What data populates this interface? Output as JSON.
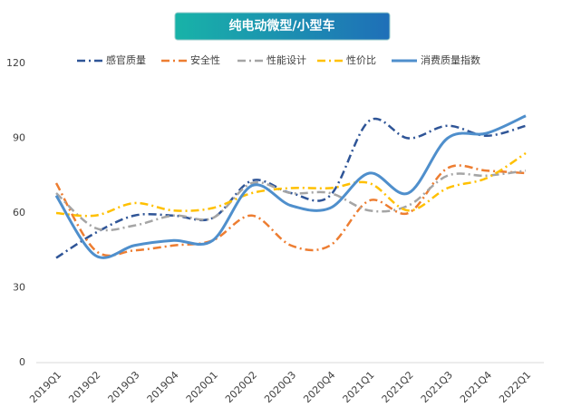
{
  "chart_data": {
    "type": "line",
    "title": "纯电动微型/小型车",
    "categories": [
      "2019Q1",
      "2019Q2",
      "2019Q3",
      "2019Q4",
      "2020Q1",
      "2020Q2",
      "2020Q3",
      "2020Q4",
      "2021Q1",
      "2021Q2",
      "2021Q3",
      "2021Q4",
      "2022Q1"
    ],
    "series": [
      {
        "name": "感官质量",
        "color": "#2f5597",
        "line_style": "dash-dot",
        "values": [
          42,
          52,
          59,
          59,
          58,
          73,
          68,
          67,
          97,
          90,
          95,
          91,
          95
        ]
      },
      {
        "name": "安全性",
        "color": "#ed7d31",
        "line_style": "dash-dot",
        "values": [
          72,
          45,
          45,
          47,
          49,
          59,
          47,
          47,
          65,
          60,
          78,
          77,
          76
        ]
      },
      {
        "name": "性能设计",
        "color": "#a5a5a5",
        "line_style": "dash-dot",
        "values": [
          68,
          54,
          55,
          59,
          58,
          72,
          68,
          68,
          61,
          63,
          75,
          75,
          77
        ]
      },
      {
        "name": "性价比",
        "color": "#ffc000",
        "line_style": "dash-dot",
        "values": [
          60,
          59,
          64,
          61,
          62,
          68,
          70,
          70,
          72,
          61,
          70,
          74,
          84
        ]
      },
      {
        "name": "消费质量指数",
        "color": "#4f8fcc",
        "line_style": "solid",
        "values": [
          67,
          43,
          47,
          49,
          49,
          71,
          63,
          62,
          76,
          68,
          90,
          92,
          99
        ]
      }
    ],
    "ylim": [
      0,
      120
    ],
    "yticks": [
      0,
      30,
      60,
      90,
      120
    ],
    "grid": false
  }
}
